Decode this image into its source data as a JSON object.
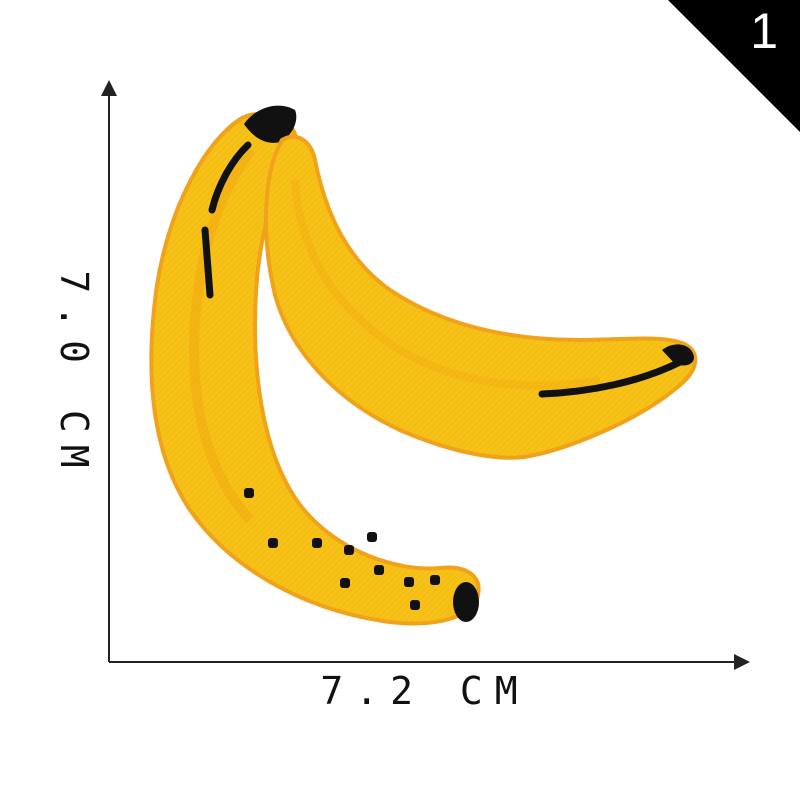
{
  "product": {
    "image_number": "1",
    "width_label": "7.2 CM",
    "height_label": "7.0 CM"
  },
  "icons": {
    "subject": "banana-patch-icon",
    "corner": "corner-triangle-badge"
  },
  "colors": {
    "banana_fill": "#f6bf12",
    "banana_shadow": "#ee9b0d",
    "banana_edge": "#f0a21a",
    "stitch": "#111111",
    "corner_badge": "#000000",
    "dimension_lines": "#222222"
  }
}
